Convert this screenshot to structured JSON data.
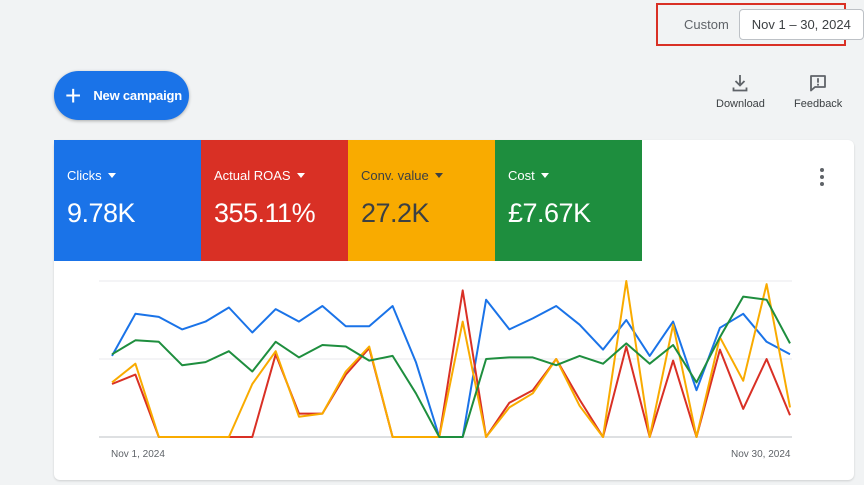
{
  "date_range": {
    "custom_label": "Custom",
    "value": "Nov 1 – 30, 2024"
  },
  "actions": {
    "new_campaign_label": "New campaign",
    "download_label": "Download",
    "feedback_label": "Feedback"
  },
  "metrics": [
    {
      "name": "Clicks",
      "value": "9.78K",
      "color": "#1a73e8"
    },
    {
      "name": "Actual ROAS",
      "value": "355.11%",
      "color": "#d93025"
    },
    {
      "name": "Conv. value",
      "value": "27.2K",
      "color": "#f9ab00"
    },
    {
      "name": "Cost",
      "value": "£7.67K",
      "color": "#1e8e3e"
    }
  ],
  "chart_data": {
    "type": "line",
    "x_start_label": "Nov 1, 2024",
    "x_end_label": "Nov 30, 2024",
    "ylim": [
      0,
      100
    ],
    "grid": true,
    "series": [
      {
        "name": "Clicks",
        "color": "#1a73e8",
        "values": [
          52,
          79,
          77,
          69,
          74,
          83,
          67,
          82,
          74,
          84,
          71,
          71,
          84,
          48,
          0,
          0,
          88,
          69,
          76,
          84,
          72,
          56,
          75,
          52,
          74,
          30,
          70,
          79,
          61,
          53
        ]
      },
      {
        "name": "Actual ROAS",
        "color": "#d93025",
        "values": [
          34,
          40,
          0,
          0,
          0,
          0,
          0,
          53,
          15,
          15,
          40,
          57,
          0,
          0,
          0,
          94,
          0,
          22,
          30,
          50,
          24,
          0,
          58,
          0,
          49,
          0,
          56,
          18,
          50,
          14
        ]
      },
      {
        "name": "Conv. value",
        "color": "#f9ab00",
        "values": [
          35,
          47,
          0,
          0,
          0,
          0,
          34,
          55,
          13,
          15,
          42,
          58,
          0,
          0,
          0,
          74,
          0,
          19,
          28,
          50,
          20,
          0,
          100,
          0,
          72,
          0,
          64,
          36,
          98,
          19
        ]
      },
      {
        "name": "Cost",
        "color": "#1e8e3e",
        "values": [
          53,
          62,
          61,
          46,
          48,
          55,
          42,
          61,
          51,
          59,
          58,
          49,
          52,
          28,
          0,
          0,
          50,
          51,
          51,
          46,
          52,
          47,
          60,
          47,
          59,
          35,
          64,
          90,
          88,
          60
        ]
      }
    ]
  }
}
